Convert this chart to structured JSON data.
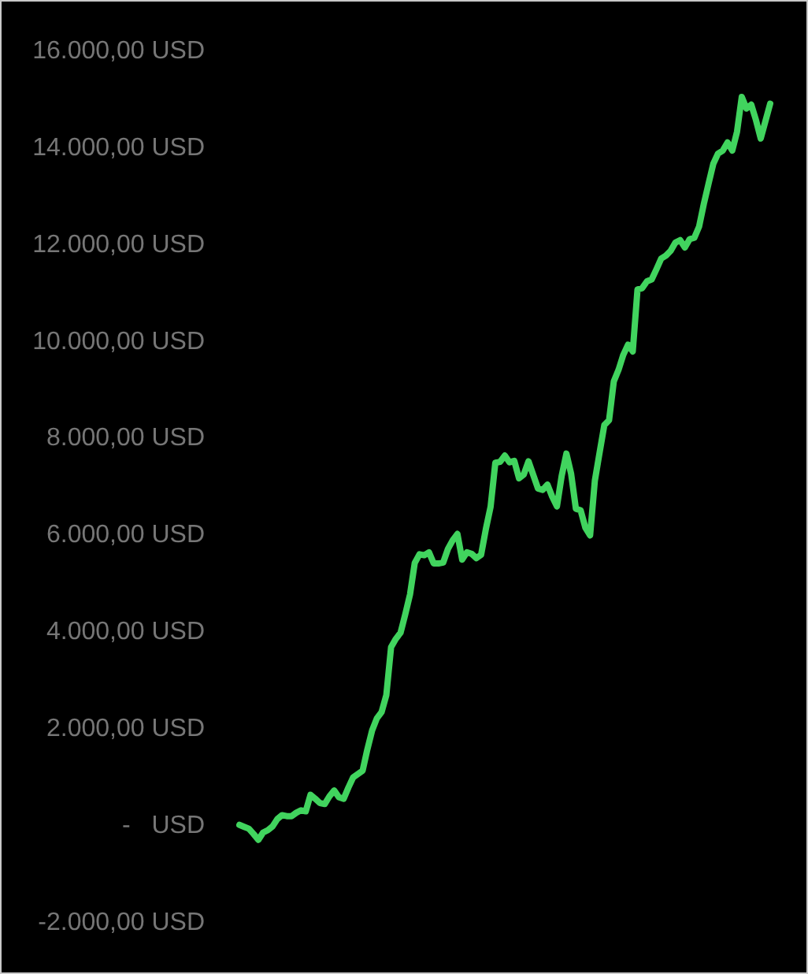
{
  "chart_data": {
    "type": "line",
    "categories": [
      null,
      null,
      null,
      null,
      null,
      null,
      null,
      null,
      null,
      null,
      null,
      null,
      null,
      null,
      null,
      null,
      null,
      null,
      null,
      null,
      null,
      null,
      null,
      null,
      null,
      null,
      null,
      null,
      null,
      null,
      null,
      null,
      null,
      null,
      null,
      null,
      null,
      null,
      null,
      null,
      null,
      null,
      null,
      null,
      null,
      null,
      null,
      null,
      null,
      null,
      null,
      null,
      null,
      null,
      null,
      null,
      null,
      null,
      null,
      null,
      null,
      null,
      null,
      null,
      null,
      null,
      null,
      null,
      null,
      null,
      null,
      null,
      null,
      null,
      null,
      null,
      null,
      null,
      null,
      null,
      null,
      null,
      null,
      null,
      null,
      null,
      null,
      null,
      null,
      null,
      null,
      null,
      null,
      null,
      null,
      null,
      null,
      null,
      null,
      null,
      null,
      null,
      null,
      null,
      null,
      null,
      null,
      null,
      null,
      null,
      null,
      null,
      null
    ],
    "values": [
      20,
      -20,
      -60,
      -170,
      -290,
      -140,
      -90,
      -10,
      140,
      220,
      200,
      200,
      270,
      320,
      300,
      640,
      560,
      470,
      450,
      610,
      730,
      590,
      560,
      790,
      1000,
      1070,
      1140,
      1580,
      1970,
      2220,
      2350,
      2700,
      3690,
      3860,
      3990,
      4370,
      4780,
      5430,
      5610,
      5590,
      5650,
      5420,
      5420,
      5440,
      5720,
      5900,
      6030,
      5500,
      5650,
      5620,
      5530,
      5600,
      6130,
      6590,
      7500,
      7520,
      7650,
      7510,
      7540,
      7180,
      7260,
      7530,
      7250,
      6970,
      6940,
      7050,
      6800,
      6600,
      7230,
      7690,
      7270,
      6550,
      6520,
      6160,
      6000,
      7130,
      7710,
      8280,
      8380,
      9180,
      9420,
      9730,
      9940,
      9800,
      11080,
      11110,
      11250,
      11290,
      11500,
      11720,
      11780,
      11880,
      12050,
      12100,
      11950,
      12120,
      12150,
      12380,
      12850,
      13270,
      13680,
      13890,
      13950,
      14120,
      13950,
      14340,
      15060,
      14820,
      14900,
      14580,
      14200,
      14560,
      14920
    ],
    "color": "#41d45e",
    "ylim": [
      -2000,
      16000
    ],
    "yticks": [
      {
        "value": -2000,
        "label": "-2.000,00 USD"
      },
      {
        "value": 0,
        "label": "-   USD"
      },
      {
        "value": 2000,
        "label": "2.000,00 USD"
      },
      {
        "value": 4000,
        "label": "4.000,00 USD"
      },
      {
        "value": 6000,
        "label": "6.000,00 USD"
      },
      {
        "value": 8000,
        "label": "8.000,00 USD"
      },
      {
        "value": 10000,
        "label": "10.000,00 USD"
      },
      {
        "value": 12000,
        "label": "12.000,00 USD"
      },
      {
        "value": 14000,
        "label": "14.000,00 USD"
      },
      {
        "value": 16000,
        "label": "16.000,00 USD"
      }
    ],
    "grid": false,
    "legend": false,
    "marker": "none",
    "line_style": "solid",
    "tick_labels": "y"
  }
}
